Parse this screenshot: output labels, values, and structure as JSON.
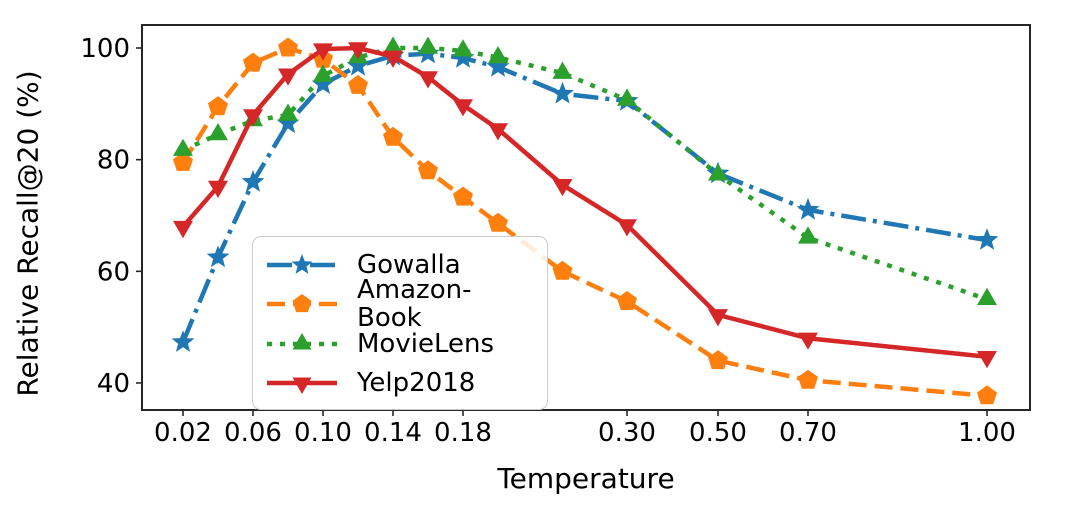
{
  "chart_data": {
    "type": "line",
    "title": "",
    "xlabel": "Temperature",
    "ylabel": "Relative Recall@20 (%)",
    "x": [
      0.02,
      0.04,
      0.06,
      0.08,
      0.1,
      0.12,
      0.14,
      0.16,
      0.18,
      0.2,
      0.25,
      0.3,
      0.5,
      0.7,
      1.0
    ],
    "series": [
      {
        "name": "Gowalla",
        "color": "#1f77b4",
        "linestyle": "dashdot",
        "marker": "star",
        "values": [
          47.3,
          62.5,
          76.0,
          86.5,
          93.5,
          96.8,
          98.6,
          99.0,
          98.2,
          96.6,
          91.8,
          90.5,
          77.5,
          71.0,
          65.6
        ]
      },
      {
        "name": "Amazon-Book",
        "color": "#ff7f0e",
        "linestyle": "dashed",
        "marker": "pentagon",
        "values": [
          79.5,
          89.5,
          97.3,
          100.0,
          98.0,
          93.3,
          84.0,
          78.0,
          73.3,
          68.6,
          60.0,
          54.6,
          44.0,
          40.5,
          37.7
        ]
      },
      {
        "name": "MovieLens",
        "color": "#2ca02c",
        "linestyle": "dotted",
        "marker": "triangle-up",
        "values": [
          81.7,
          84.5,
          87.0,
          88.0,
          95.0,
          98.3,
          100.0,
          100.0,
          99.5,
          98.3,
          95.5,
          90.7,
          77.3,
          66.0,
          55.0
        ]
      },
      {
        "name": "Yelp2018",
        "color": "#d62728",
        "linestyle": "solid",
        "marker": "triangle-down",
        "values": [
          68.0,
          75.2,
          88.0,
          95.3,
          99.8,
          100.0,
          98.5,
          94.8,
          89.8,
          85.5,
          75.5,
          68.3,
          52.2,
          48.0,
          44.7
        ]
      }
    ],
    "x_ticks": [
      0.02,
      0.06,
      0.1,
      0.14,
      0.18,
      0.3,
      0.5,
      0.7,
      1.0
    ],
    "x_tick_labels": [
      "0.02",
      "0.06",
      "0.10",
      "0.14",
      "0.18",
      "0.30",
      "0.50",
      "0.70",
      "1.00"
    ],
    "y_ticks": [
      40,
      60,
      80,
      100
    ],
    "y_tick_labels": [
      "40",
      "60",
      "80",
      "100"
    ],
    "ylim": [
      35.2,
      104.1
    ],
    "xscale": "nonlinear-compressed-above-0.2",
    "grid": false,
    "legend_position": "lower-left-inside",
    "axis_color": "#000000",
    "background_color": "#ffffff"
  }
}
